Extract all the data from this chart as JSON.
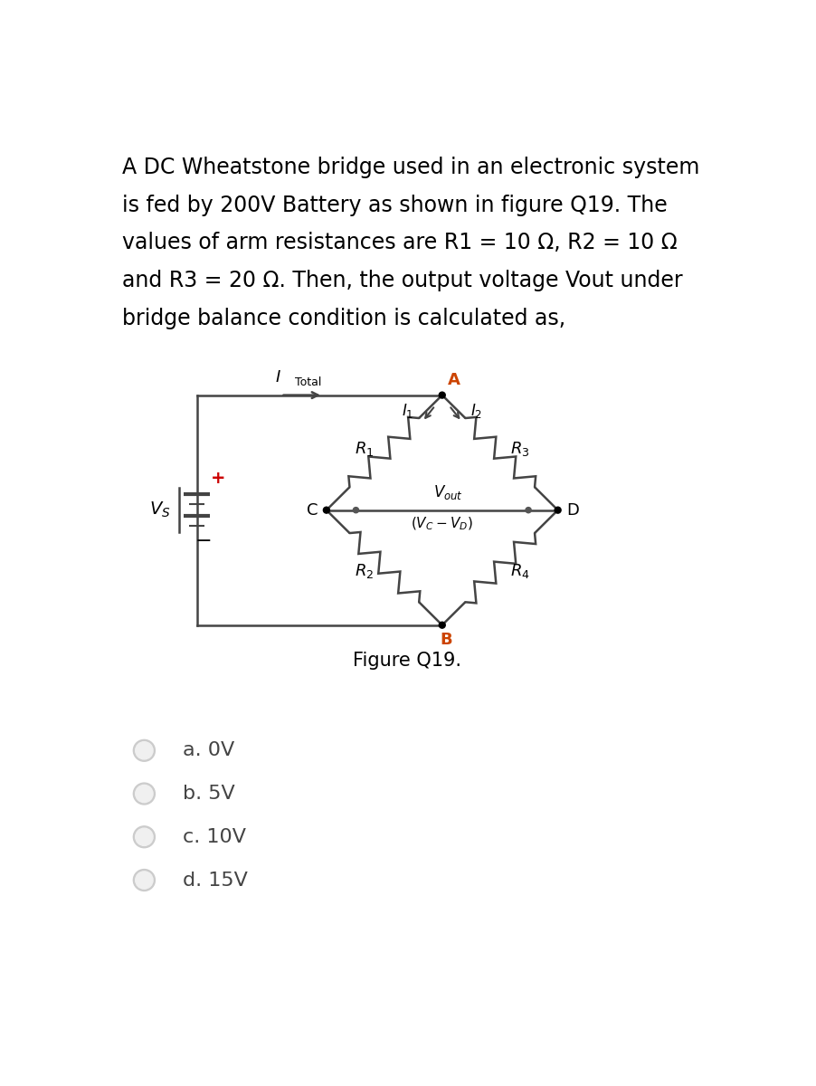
{
  "question_text_lines": [
    "A DC Wheatstone bridge used in an electronic system",
    "is fed by 200V Battery as shown in figure Q19. The",
    "values of arm resistances are R1 = 10 Ω, R2 = 10 Ω",
    "and R3 = 20 Ω. Then, the output voltage Vout under",
    "bridge balance condition is calculated as,"
  ],
  "figure_caption": "Figure Q19.",
  "options": [
    "a. 0V",
    "b. 5V",
    "c. 10V",
    "d. 15V"
  ],
  "bg_color": "#ffffff",
  "text_color": "#000000",
  "circuit_color": "#444444",
  "node_color": "#000000",
  "red_color": "#cc0000",
  "orange_color": "#cc4400",
  "question_fontsize": 17.0,
  "label_fontsize": 13,
  "option_fontsize": 16,
  "caption_fontsize": 15
}
